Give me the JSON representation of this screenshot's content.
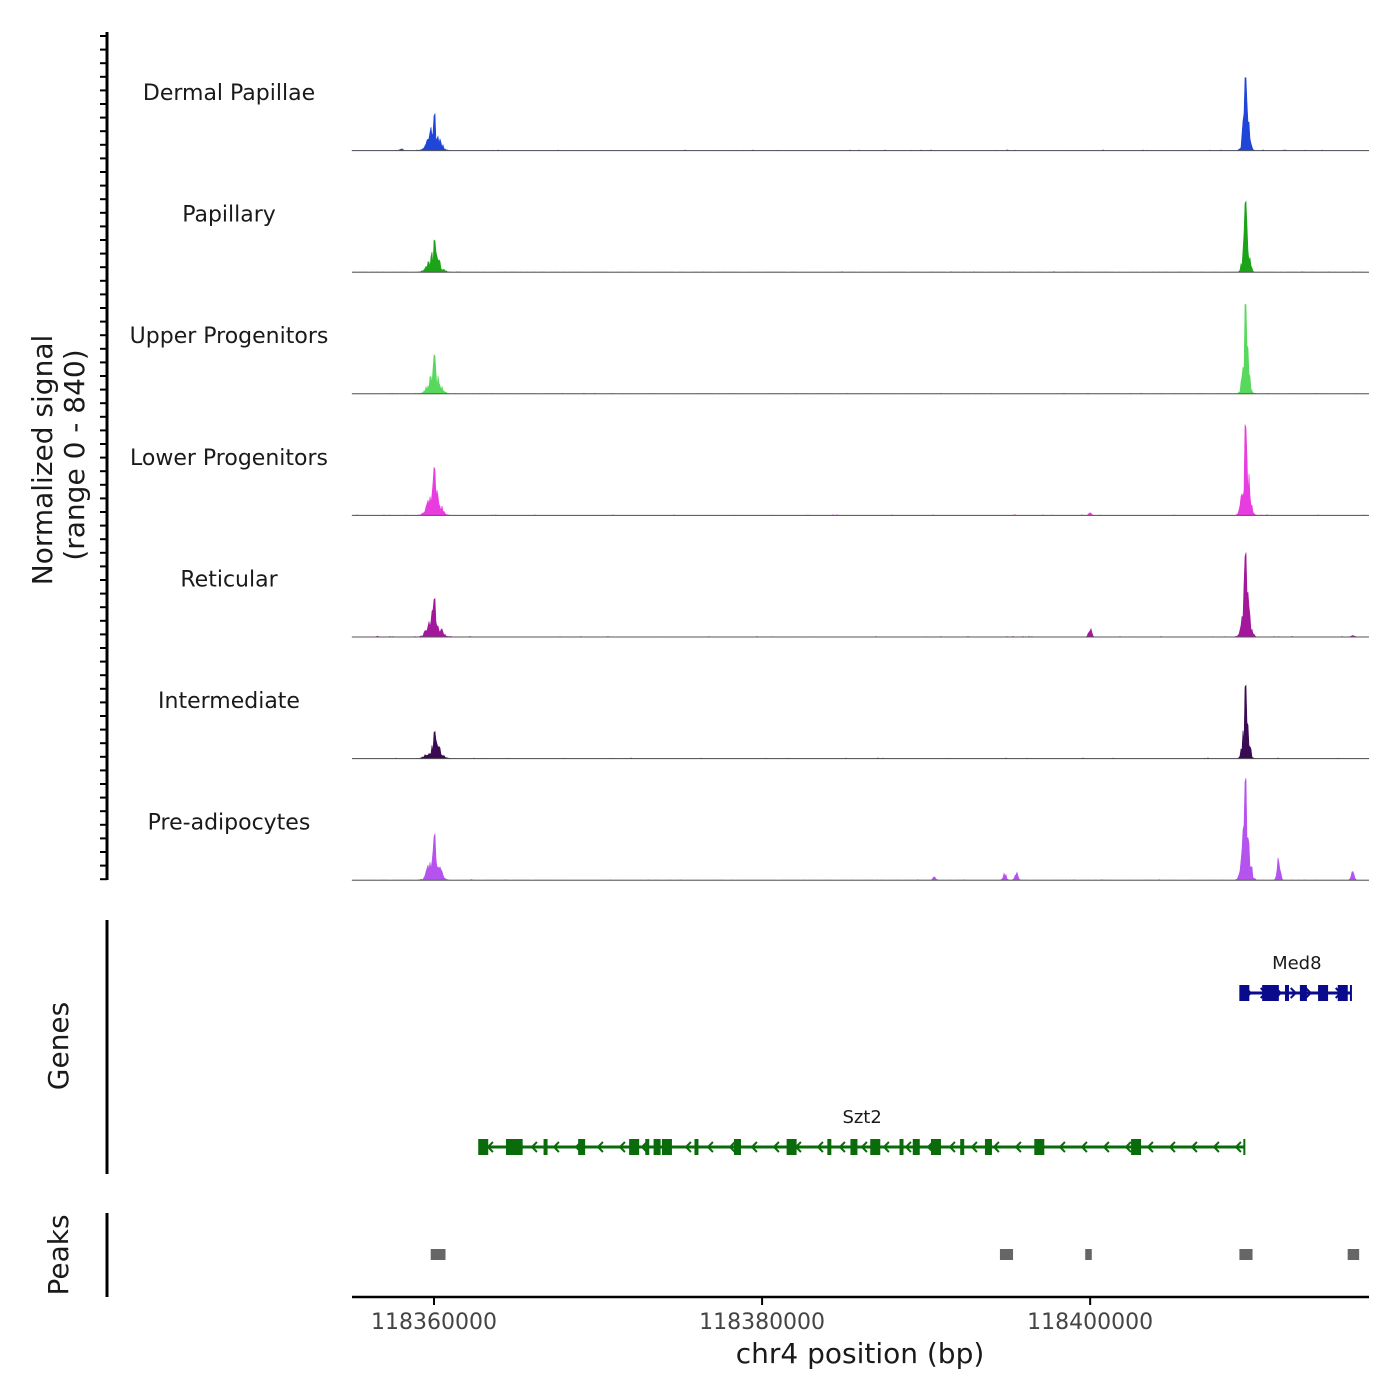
{
  "chart_data": {
    "type": "area",
    "title": "",
    "ylabel": "Normalized signal",
    "ylabel_range": "(range 0 - 840)",
    "xlabel": "chr4 position (bp)",
    "xlim": [
      118355000,
      118417000
    ],
    "ylim": [
      0,
      840
    ],
    "grid": false,
    "x_ticks": [
      {
        "value": 118360000,
        "label": "118360000"
      },
      {
        "value": 118380000,
        "label": "118380000"
      },
      {
        "value": 118400000,
        "label": "118400000"
      }
    ],
    "tracks": [
      {
        "name": "Dermal Papillae",
        "color": "#1f45d9",
        "peaks": [
          {
            "center": 118360000,
            "height": 420,
            "width": 350
          },
          {
            "center": 118409500,
            "height": 840,
            "width": 180
          }
        ],
        "minor": [
          {
            "center": 118358000,
            "height": 25
          }
        ]
      },
      {
        "name": "Papillary",
        "color": "#1ca319",
        "peaks": [
          {
            "center": 118360000,
            "height": 360,
            "width": 350
          },
          {
            "center": 118409500,
            "height": 830,
            "width": 180
          }
        ],
        "minor": []
      },
      {
        "name": "Upper Progenitors",
        "color": "#58d85c",
        "peaks": [
          {
            "center": 118360000,
            "height": 440,
            "width": 330
          },
          {
            "center": 118409500,
            "height": 1040,
            "width": 180
          }
        ],
        "minor": []
      },
      {
        "name": "Lower Progenitors",
        "color": "#e83ce0",
        "peaks": [
          {
            "center": 118360000,
            "height": 550,
            "width": 330
          },
          {
            "center": 118409500,
            "height": 1010,
            "width": 220
          }
        ],
        "minor": [
          {
            "center": 118400000,
            "height": 30
          }
        ]
      },
      {
        "name": "Reticular",
        "color": "#a3179b",
        "peaks": [
          {
            "center": 118360000,
            "height": 450,
            "width": 350
          },
          {
            "center": 118409500,
            "height": 960,
            "width": 220
          }
        ],
        "minor": [
          {
            "center": 118400000,
            "height": 120
          },
          {
            "center": 118416000,
            "height": 20
          }
        ]
      },
      {
        "name": "Intermediate",
        "color": "#3a0a52",
        "peaks": [
          {
            "center": 118360000,
            "height": 310,
            "width": 350
          },
          {
            "center": 118409500,
            "height": 860,
            "width": 180
          }
        ],
        "minor": []
      },
      {
        "name": "Pre-adipocytes",
        "color": "#b553ee",
        "peaks": [
          {
            "center": 118360000,
            "height": 520,
            "width": 330
          },
          {
            "center": 118409500,
            "height": 1150,
            "width": 220
          }
        ],
        "minor": [
          {
            "center": 118411500,
            "height": 290
          },
          {
            "center": 118395500,
            "height": 120
          },
          {
            "center": 118394800,
            "height": 90
          },
          {
            "center": 118416000,
            "height": 130
          },
          {
            "center": 118390500,
            "height": 40
          }
        ]
      }
    ],
    "genes": [
      {
        "name": "Med8",
        "start": 118409300,
        "end": 118415900,
        "strand": "+",
        "color": "#0a0a8c",
        "exons": [
          118409400,
          118410700,
          118411200,
          118412000,
          118413000,
          118414200,
          118415400
        ]
      },
      {
        "name": "Szt2",
        "start": 118362800,
        "end": 118409400,
        "strand": "-",
        "color": "#0a6b0a",
        "exons": [
          118363000,
          118364600,
          118365100,
          118366800,
          118369000,
          118372200,
          118373000,
          118373600,
          118374200,
          118376000,
          118378500,
          118381800,
          118384100,
          118385600,
          118386900,
          118388500,
          118389400,
          118390600,
          118392200,
          118393800,
          118396900,
          118402800
        ]
      }
    ],
    "peaks_track": [
      {
        "start": 118359800,
        "end": 118360700
      },
      {
        "start": 118394500,
        "end": 118395300
      },
      {
        "start": 118399700,
        "end": 118400100
      },
      {
        "start": 118409100,
        "end": 118409900
      },
      {
        "start": 118415700,
        "end": 118416400
      }
    ],
    "panel_labels": {
      "genes": "Genes",
      "peaks": "Peaks"
    }
  }
}
